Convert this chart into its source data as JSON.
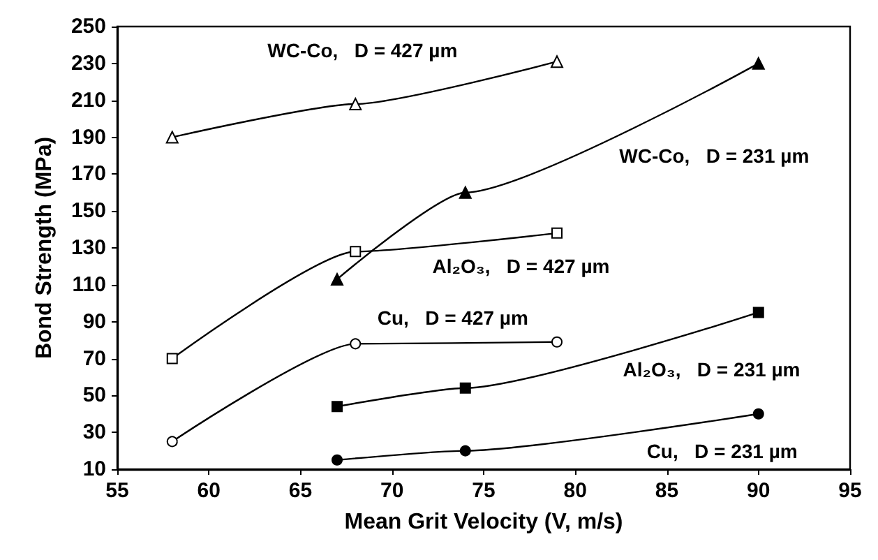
{
  "chart_data": {
    "type": "line",
    "xlabel": "Mean Grit Velocity (V, m/s)",
    "ylabel": "Bond Strength (MPa)",
    "xlim": [
      55,
      95
    ],
    "xticks": [
      55,
      60,
      65,
      70,
      75,
      80,
      85,
      90,
      95
    ],
    "ylim": [
      10,
      250
    ],
    "yticks": [
      10,
      30,
      50,
      70,
      90,
      110,
      130,
      150,
      170,
      190,
      210,
      230,
      250
    ],
    "grid": false,
    "legend": false,
    "series": [
      {
        "name": "WC-Co,   D = 427 µm",
        "color": "#000000",
        "marker": "triangle",
        "x": [
          58,
          68,
          79
        ],
        "values": [
          190,
          208,
          231
        ]
      },
      {
        "name": "WC-Co,   D = 231 µm",
        "color": "#000000",
        "marker": "triangle",
        "x": [
          67,
          74,
          90
        ],
        "values": [
          113,
          160,
          230
        ]
      },
      {
        "name": "Al₂O₃,   D = 427 µm",
        "color": "#000000",
        "marker": "square",
        "x": [
          58,
          68,
          79
        ],
        "values": [
          70,
          128,
          138
        ]
      },
      {
        "name": "Cu,   D = 427 µm",
        "color": "#000000",
        "marker": "circle",
        "x": [
          58,
          68,
          79
        ],
        "values": [
          25,
          78,
          79
        ]
      },
      {
        "name": "Al₂O₃,   D = 231 µm",
        "color": "#000000",
        "marker": "square",
        "x": [
          67,
          74,
          90
        ],
        "values": [
          44,
          54,
          95
        ]
      },
      {
        "name": "Cu,   D = 231 µm",
        "color": "#000000",
        "marker": "circle",
        "x": [
          67,
          74,
          90
        ],
        "values": [
          15,
          20,
          40
        ]
      }
    ]
  }
}
